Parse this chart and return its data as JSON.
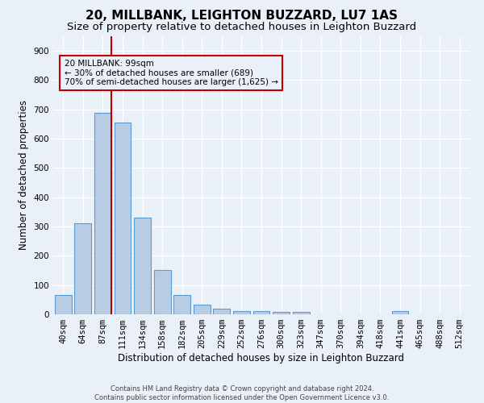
{
  "title1": "20, MILLBANK, LEIGHTON BUZZARD, LU7 1AS",
  "title2": "Size of property relative to detached houses in Leighton Buzzard",
  "xlabel": "Distribution of detached houses by size in Leighton Buzzard",
  "ylabel": "Number of detached properties",
  "footnote": "Contains HM Land Registry data © Crown copyright and database right 2024.\nContains public sector information licensed under the Open Government Licence v3.0.",
  "categories": [
    "40sqm",
    "64sqm",
    "87sqm",
    "111sqm",
    "134sqm",
    "158sqm",
    "182sqm",
    "205sqm",
    "229sqm",
    "252sqm",
    "276sqm",
    "300sqm",
    "323sqm",
    "347sqm",
    "370sqm",
    "394sqm",
    "418sqm",
    "441sqm",
    "465sqm",
    "488sqm",
    "512sqm"
  ],
  "values": [
    65,
    310,
    688,
    655,
    330,
    152,
    65,
    32,
    20,
    12,
    12,
    8,
    8,
    0,
    0,
    0,
    0,
    10,
    0,
    0,
    0
  ],
  "bar_color": "#b8cce4",
  "bar_edge_color": "#5b9bd5",
  "subject_line_color": "#c00000",
  "annotation_text": "20 MILLBANK: 99sqm\n← 30% of detached houses are smaller (689)\n70% of semi-detached houses are larger (1,625) →",
  "annotation_box_color": "#c00000",
  "ylim": [
    0,
    950
  ],
  "yticks": [
    0,
    100,
    200,
    300,
    400,
    500,
    600,
    700,
    800,
    900
  ],
  "bg_color": "#eaf0f8",
  "grid_color": "#ffffff",
  "title1_fontsize": 11,
  "title2_fontsize": 9.5,
  "axis_label_fontsize": 8.5,
  "tick_fontsize": 7.5,
  "footnote_fontsize": 6.0
}
